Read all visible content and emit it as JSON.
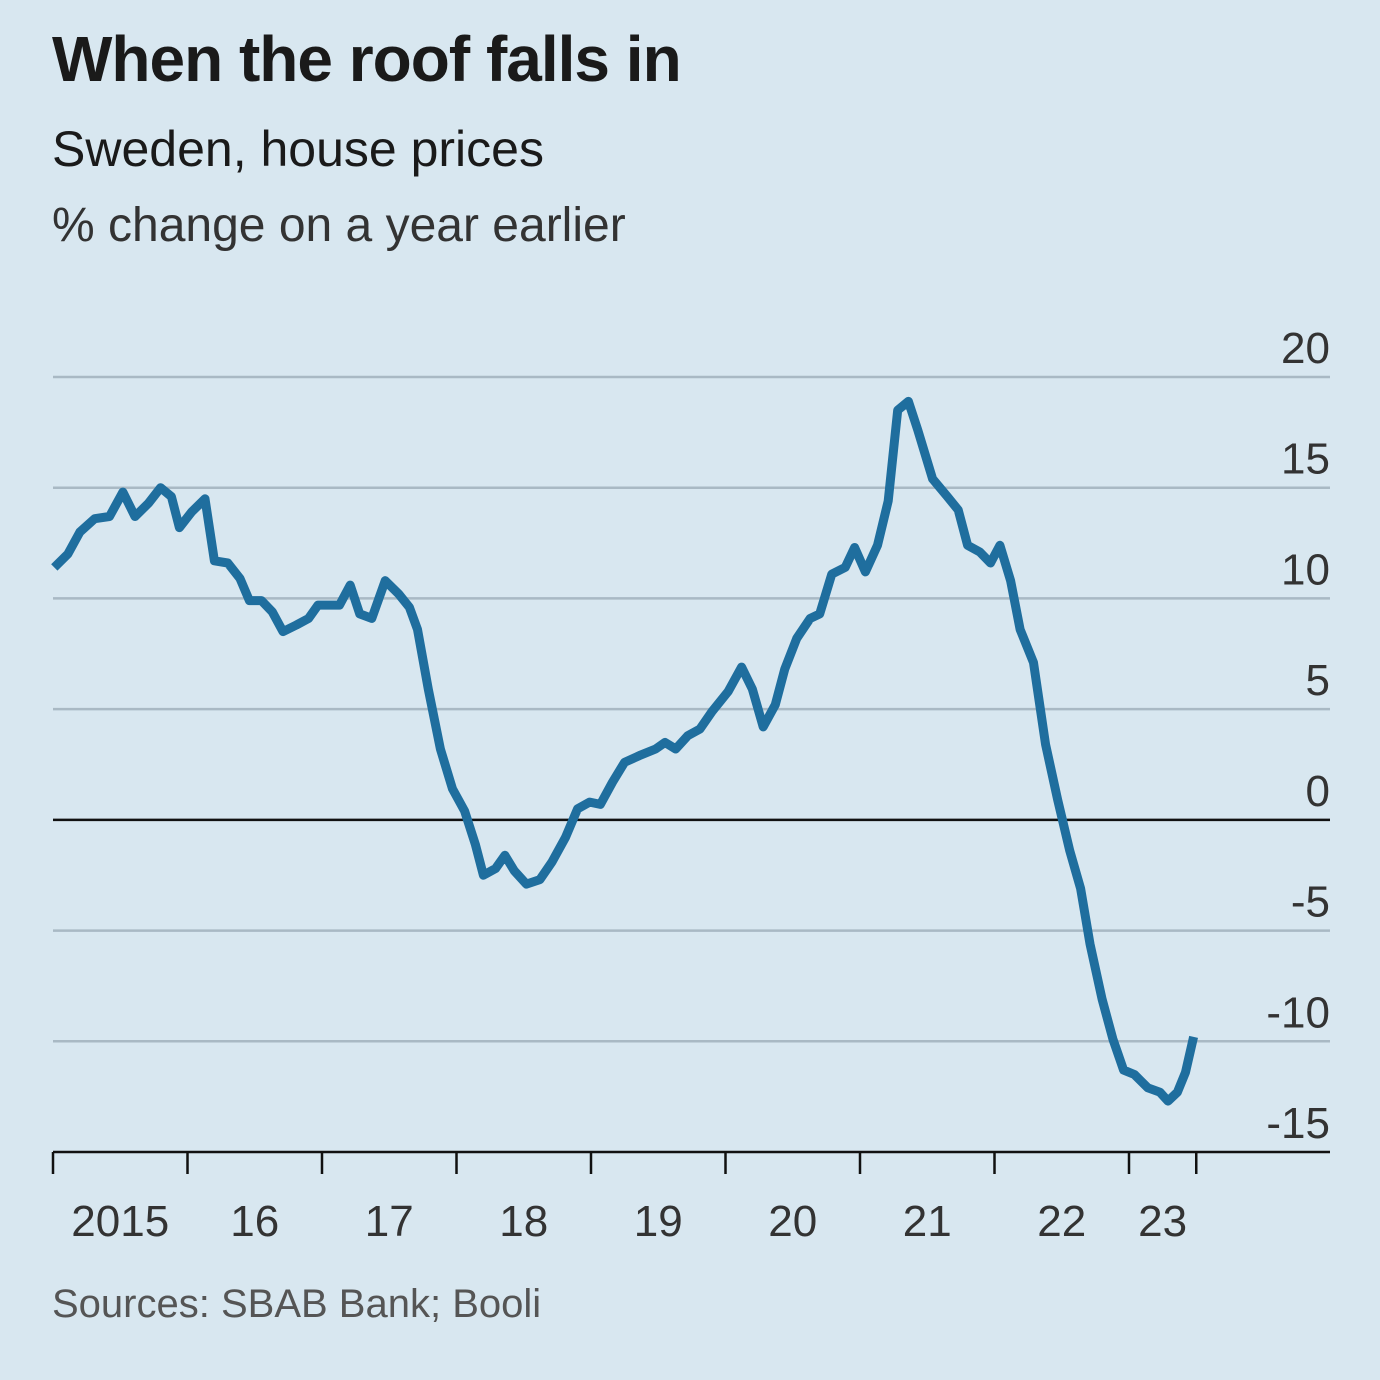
{
  "chart_data": {
    "type": "line",
    "title": "When the roof falls in",
    "subtitle": "Sweden, house prices",
    "ylabel": "% change on a year earlier",
    "source": "Sources: SBAB Bank; Booli",
    "ylim": [
      -15,
      20
    ],
    "yticks": [
      20,
      15,
      10,
      5,
      0,
      -5,
      -10,
      -15
    ],
    "ytick_labels": [
      "20",
      "15",
      "10",
      "5",
      "0",
      "-5",
      "-10",
      "-15"
    ],
    "xlim": [
      2015.0,
      2023.5
    ],
    "xtick_labels": [
      {
        "label": "2015",
        "year": 2015
      },
      {
        "label": "16",
        "year": 2016
      },
      {
        "label": "17",
        "year": 2017
      },
      {
        "label": "18",
        "year": 2018
      },
      {
        "label": "19",
        "year": 2019
      },
      {
        "label": "20",
        "year": 2020
      },
      {
        "label": "21",
        "year": 2021
      },
      {
        "label": "22",
        "year": 2022
      },
      {
        "label": "23",
        "year": 2023
      }
    ],
    "grid": true,
    "line_color": "#1f6e9e",
    "series": [
      {
        "name": "Sweden house prices",
        "x": [
          2015.01,
          2015.11,
          2015.2,
          2015.31,
          2015.42,
          2015.52,
          2015.61,
          2015.71,
          2015.8,
          2015.88,
          2015.94,
          2016.03,
          2016.13,
          2016.2,
          2016.3,
          2016.39,
          2016.46,
          2016.55,
          2016.63,
          2016.71,
          2016.81,
          2016.9,
          2016.97,
          2017.07,
          2017.13,
          2017.21,
          2017.28,
          2017.37,
          2017.47,
          2017.57,
          2017.65,
          2017.71,
          2017.79,
          2017.88,
          2017.97,
          2018.06,
          2018.14,
          2018.2,
          2018.29,
          2018.36,
          2018.43,
          2018.52,
          2018.62,
          2018.71,
          2018.81,
          2018.9,
          2018.99,
          2019.07,
          2019.16,
          2019.25,
          2019.36,
          2019.48,
          2019.55,
          2019.63,
          2019.72,
          2019.81,
          2019.9,
          2020.02,
          2020.12,
          2020.2,
          2020.28,
          2020.37,
          2020.44,
          2020.53,
          2020.63,
          2020.7,
          2020.79,
          2020.89,
          2020.96,
          2021.04,
          2021.13,
          2021.21,
          2021.28,
          2021.36,
          2021.43,
          2021.54,
          2021.65,
          2021.73,
          2021.8,
          2021.89,
          2021.97,
          2022.04,
          2022.12,
          2022.19,
          2022.29,
          2022.38,
          2022.47,
          2022.56,
          2022.64,
          2022.71,
          2022.8,
          2022.88,
          2022.96,
          2023.04,
          2023.14,
          2023.23,
          2023.29,
          2023.36,
          2023.42,
          2023.48
        ],
        "values": [
          11.4,
          12.0,
          13.0,
          13.6,
          13.7,
          14.8,
          13.7,
          14.3,
          15.0,
          14.6,
          13.2,
          13.9,
          14.5,
          11.7,
          11.6,
          10.9,
          9.9,
          9.9,
          9.4,
          8.5,
          8.8,
          9.1,
          9.7,
          9.7,
          9.7,
          10.6,
          9.3,
          9.1,
          10.8,
          10.2,
          9.6,
          8.6,
          5.9,
          3.2,
          1.4,
          0.4,
          -1.1,
          -2.5,
          -2.2,
          -1.6,
          -2.3,
          -2.9,
          -2.7,
          -1.9,
          -0.8,
          0.5,
          0.8,
          0.7,
          1.7,
          2.6,
          2.9,
          3.2,
          3.5,
          3.2,
          3.8,
          4.1,
          4.9,
          5.8,
          6.9,
          5.9,
          4.2,
          5.2,
          6.8,
          8.2,
          9.1,
          9.3,
          11.1,
          11.4,
          12.3,
          11.2,
          12.4,
          14.4,
          18.5,
          18.9,
          17.6,
          15.4,
          14.6,
          14.0,
          12.4,
          12.1,
          11.6,
          12.4,
          10.8,
          8.6,
          7.1,
          3.4,
          0.9,
          -1.4,
          -3.1,
          -5.6,
          -8.1,
          -9.9,
          -11.3,
          -11.5,
          -12.1,
          -12.3,
          -12.7,
          -12.3,
          -11.4,
          -9.8
        ]
      }
    ]
  }
}
